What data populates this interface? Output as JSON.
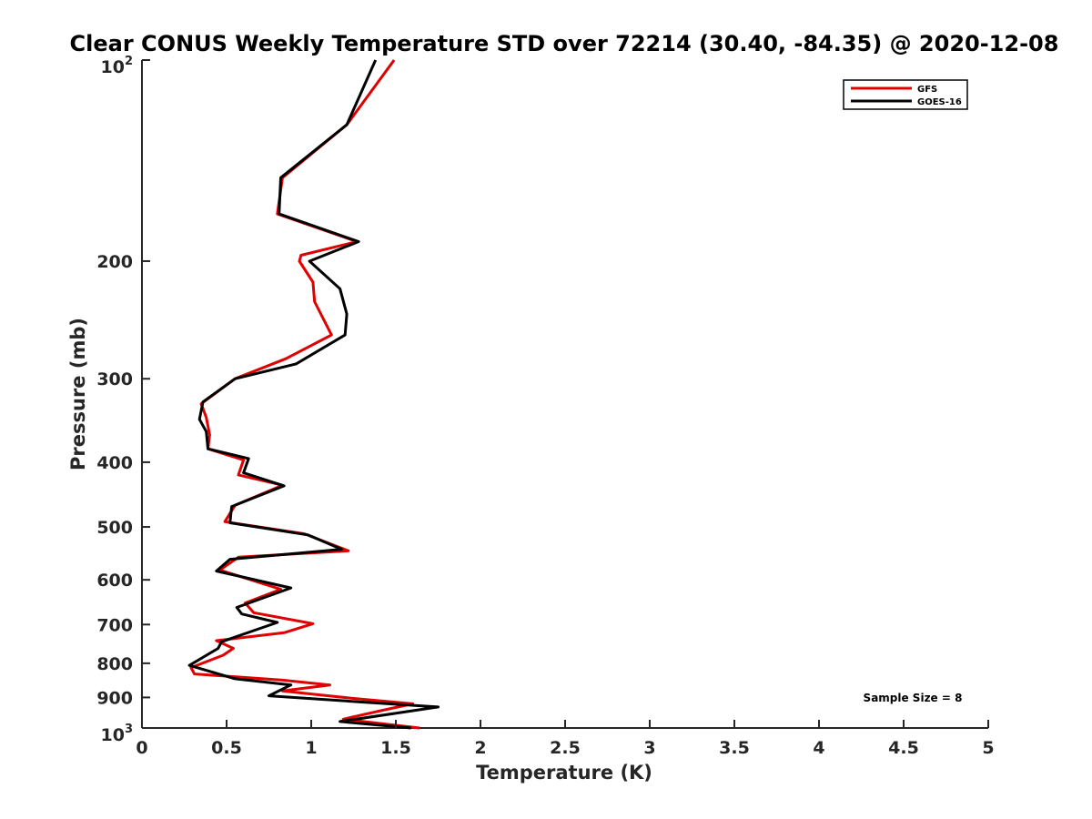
{
  "chart_data": {
    "type": "line",
    "title": "Clear CONUS Weekly Temperature STD over 72214 (30.40, -84.35) @ 2020-12-08",
    "xlabel": "Temperature (K)",
    "ylabel": "Pressure (mb)",
    "xlim": [
      0,
      5
    ],
    "ylim": [
      100,
      1000
    ],
    "yscale": "log",
    "yreversed": true,
    "grid": false,
    "legend_position": "top-right",
    "x_ticks": [
      {
        "value": 0,
        "label": "0"
      },
      {
        "value": 0.5,
        "label": "0.5"
      },
      {
        "value": 1,
        "label": "1"
      },
      {
        "value": 1.5,
        "label": "1.5"
      },
      {
        "value": 2,
        "label": "2"
      },
      {
        "value": 2.5,
        "label": "2.5"
      },
      {
        "value": 3,
        "label": "3"
      },
      {
        "value": 3.5,
        "label": "3.5"
      },
      {
        "value": 4,
        "label": "4"
      },
      {
        "value": 4.5,
        "label": "4.5"
      },
      {
        "value": 5,
        "label": "5"
      }
    ],
    "y_ticks": [
      {
        "value": 100,
        "label": "10",
        "sup": "2"
      },
      {
        "value": 200,
        "label": "200"
      },
      {
        "value": 300,
        "label": "300"
      },
      {
        "value": 400,
        "label": "400"
      },
      {
        "value": 500,
        "label": "500"
      },
      {
        "value": 600,
        "label": "600"
      },
      {
        "value": 700,
        "label": "700"
      },
      {
        "value": 800,
        "label": "800"
      },
      {
        "value": 900,
        "label": "900"
      },
      {
        "value": 1000,
        "label": "10",
        "sup": "3"
      }
    ],
    "annotation": "Sample Size = 8",
    "series": [
      {
        "name": "GFS",
        "color": "#e00000",
        "points": [
          [
            1.49,
            100
          ],
          [
            1.21,
            125
          ],
          [
            0.83,
            150
          ],
          [
            0.8,
            170
          ],
          [
            1.27,
            187
          ],
          [
            0.94,
            196
          ],
          [
            0.93,
            200
          ],
          [
            1.01,
            215
          ],
          [
            1.02,
            230
          ],
          [
            1.12,
            258
          ],
          [
            0.85,
            280
          ],
          [
            0.55,
            300
          ],
          [
            0.35,
            327
          ],
          [
            0.38,
            343
          ],
          [
            0.4,
            364
          ],
          [
            0.39,
            382
          ],
          [
            0.6,
            397
          ],
          [
            0.57,
            418
          ],
          [
            0.83,
            433
          ],
          [
            0.55,
            464
          ],
          [
            0.49,
            491
          ],
          [
            0.96,
            512
          ],
          [
            1.22,
            543
          ],
          [
            0.57,
            555
          ],
          [
            0.46,
            580
          ],
          [
            0.82,
            620
          ],
          [
            0.61,
            650
          ],
          [
            0.66,
            672
          ],
          [
            1.01,
            698
          ],
          [
            0.84,
            720
          ],
          [
            0.44,
            740
          ],
          [
            0.54,
            760
          ],
          [
            0.48,
            778
          ],
          [
            0.29,
            812
          ],
          [
            0.31,
            830
          ],
          [
            0.83,
            848
          ],
          [
            1.11,
            862
          ],
          [
            0.83,
            880
          ],
          [
            1.25,
            903
          ],
          [
            1.6,
            920
          ],
          [
            1.41,
            942
          ],
          [
            1.19,
            970
          ],
          [
            1.64,
            1000
          ]
        ]
      },
      {
        "name": "GOES-16",
        "color": "#000000",
        "points": [
          [
            1.38,
            100
          ],
          [
            1.21,
            125
          ],
          [
            0.82,
            150
          ],
          [
            0.81,
            170
          ],
          [
            1.28,
            187
          ],
          [
            0.99,
            200
          ],
          [
            1.17,
            220
          ],
          [
            1.21,
            240
          ],
          [
            1.2,
            258
          ],
          [
            0.91,
            285
          ],
          [
            0.55,
            300
          ],
          [
            0.36,
            325
          ],
          [
            0.34,
            345
          ],
          [
            0.38,
            360
          ],
          [
            0.39,
            382
          ],
          [
            0.63,
            395
          ],
          [
            0.6,
            415
          ],
          [
            0.84,
            434
          ],
          [
            0.53,
            466
          ],
          [
            0.52,
            493
          ],
          [
            0.98,
            514
          ],
          [
            1.18,
            540
          ],
          [
            0.52,
            559
          ],
          [
            0.44,
            582
          ],
          [
            0.88,
            617
          ],
          [
            0.56,
            660
          ],
          [
            0.59,
            675
          ],
          [
            0.8,
            695
          ],
          [
            0.59,
            725
          ],
          [
            0.47,
            743
          ],
          [
            0.45,
            760
          ],
          [
            0.28,
            806
          ],
          [
            0.55,
            844
          ],
          [
            0.88,
            862
          ],
          [
            0.75,
            895
          ],
          [
            1.32,
            915
          ],
          [
            1.75,
            930
          ],
          [
            1.17,
            978
          ],
          [
            1.59,
            1000
          ]
        ]
      }
    ]
  }
}
